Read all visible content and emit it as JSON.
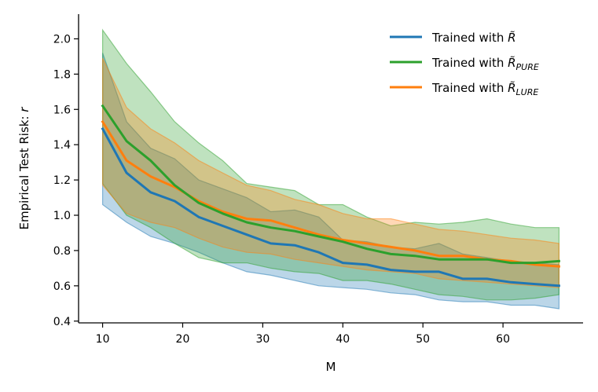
{
  "chart_data": {
    "type": "line",
    "title": "",
    "xlabel": "M",
    "ylabel_main": "Empirical Test Risk: ",
    "ylabel_var": "r",
    "xlim": [
      7,
      70
    ],
    "ylim": [
      0.39,
      2.14
    ],
    "xticks": [
      10,
      20,
      30,
      40,
      50,
      60
    ],
    "yticks": [
      0.4,
      0.6,
      0.8,
      1.0,
      1.2,
      1.4,
      1.6,
      1.8,
      2.0
    ],
    "grid": false,
    "legend_position": "top-right",
    "x": [
      10,
      13,
      16,
      19,
      22,
      25,
      28,
      31,
      34,
      37,
      40,
      43,
      46,
      49,
      52,
      55,
      58,
      61,
      64,
      67
    ],
    "series": [
      {
        "name_prefix": "Trained with ",
        "name_symbol": "R̃",
        "name_sub": "",
        "color": "#1f77b4",
        "values": [
          1.49,
          1.24,
          1.13,
          1.08,
          0.99,
          0.94,
          0.89,
          0.84,
          0.83,
          0.79,
          0.73,
          0.72,
          0.69,
          0.68,
          0.68,
          0.64,
          0.64,
          0.62,
          0.61,
          0.6
        ],
        "upper": [
          1.92,
          1.53,
          1.38,
          1.32,
          1.2,
          1.15,
          1.1,
          1.02,
          1.03,
          0.99,
          0.86,
          0.85,
          0.82,
          0.81,
          0.84,
          0.78,
          0.76,
          0.74,
          0.73,
          0.72
        ],
        "lower": [
          1.06,
          0.96,
          0.88,
          0.84,
          0.79,
          0.73,
          0.68,
          0.66,
          0.63,
          0.6,
          0.59,
          0.58,
          0.56,
          0.55,
          0.52,
          0.51,
          0.51,
          0.49,
          0.49,
          0.47
        ]
      },
      {
        "name_prefix": "Trained with ",
        "name_symbol": "R̃",
        "name_sub": "PURE",
        "color": "#2ca02c",
        "values": [
          1.62,
          1.42,
          1.31,
          1.17,
          1.07,
          1.01,
          0.96,
          0.93,
          0.91,
          0.88,
          0.85,
          0.81,
          0.78,
          0.77,
          0.75,
          0.75,
          0.75,
          0.73,
          0.73,
          0.74
        ],
        "upper": [
          2.05,
          1.86,
          1.7,
          1.53,
          1.41,
          1.31,
          1.18,
          1.16,
          1.14,
          1.06,
          1.06,
          0.99,
          0.94,
          0.96,
          0.95,
          0.96,
          0.98,
          0.95,
          0.93,
          0.93
        ],
        "lower": [
          1.18,
          1.0,
          0.93,
          0.84,
          0.76,
          0.73,
          0.73,
          0.7,
          0.68,
          0.67,
          0.63,
          0.63,
          0.61,
          0.58,
          0.55,
          0.54,
          0.52,
          0.52,
          0.53,
          0.55
        ]
      },
      {
        "name_prefix": "Trained with ",
        "name_symbol": "R̃",
        "name_sub": "LURE",
        "color": "#ff7f0e",
        "values": [
          1.53,
          1.31,
          1.22,
          1.16,
          1.08,
          1.02,
          0.98,
          0.97,
          0.93,
          0.89,
          0.86,
          0.84,
          0.82,
          0.8,
          0.77,
          0.77,
          0.75,
          0.74,
          0.72,
          0.71
        ],
        "upper": [
          1.89,
          1.61,
          1.49,
          1.41,
          1.31,
          1.24,
          1.17,
          1.14,
          1.09,
          1.06,
          1.01,
          0.98,
          0.98,
          0.95,
          0.92,
          0.91,
          0.89,
          0.87,
          0.86,
          0.84
        ],
        "lower": [
          1.17,
          1.01,
          0.96,
          0.93,
          0.87,
          0.82,
          0.79,
          0.78,
          0.75,
          0.73,
          0.71,
          0.69,
          0.68,
          0.67,
          0.64,
          0.63,
          0.62,
          0.61,
          0.6,
          0.59
        ]
      }
    ]
  }
}
